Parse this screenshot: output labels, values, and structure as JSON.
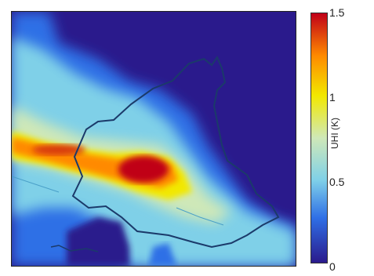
{
  "colorbar": {
    "label": "UHI (K)",
    "ticks": [
      "1.5",
      "1",
      "0.5",
      "0"
    ],
    "min": 0,
    "max": 1.5,
    "colors": [
      "#2a1a8c",
      "#2f6fe6",
      "#7fd0e8",
      "#cfe8b8",
      "#f2e800",
      "#ff8a00",
      "#c00018"
    ]
  }
}
